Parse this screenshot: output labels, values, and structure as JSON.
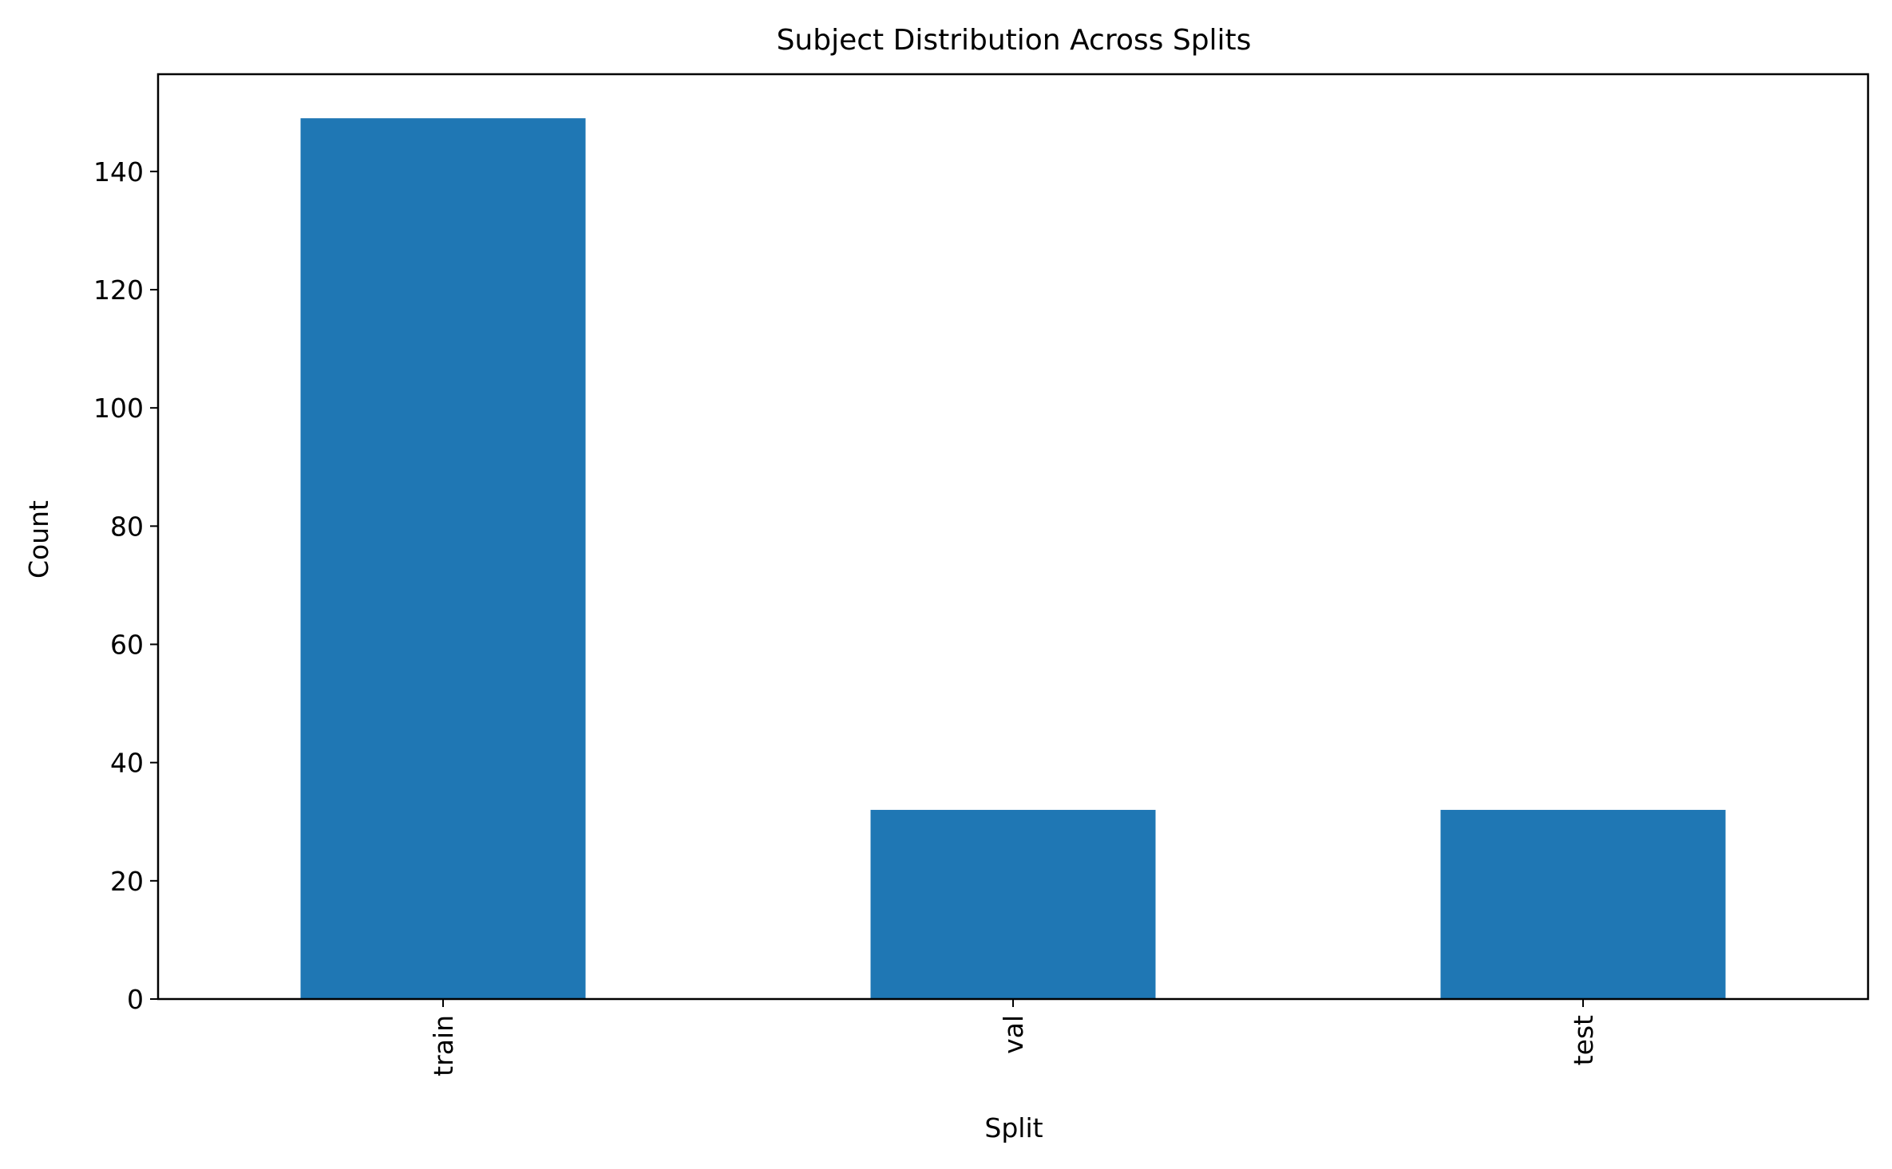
{
  "chart_data": {
    "type": "bar",
    "title": "Subject Distribution Across Splits",
    "xlabel": "Split",
    "ylabel": "Count",
    "categories": [
      "train",
      "val",
      "test"
    ],
    "values": [
      149,
      32,
      32
    ],
    "ylim": [
      0,
      156.45
    ],
    "yticks": [
      0,
      20,
      40,
      60,
      80,
      100,
      120,
      140
    ],
    "grid": false,
    "legend": "none",
    "bar_color": "#1f77b4",
    "axis_color": "#000000",
    "background": "#ffffff"
  }
}
